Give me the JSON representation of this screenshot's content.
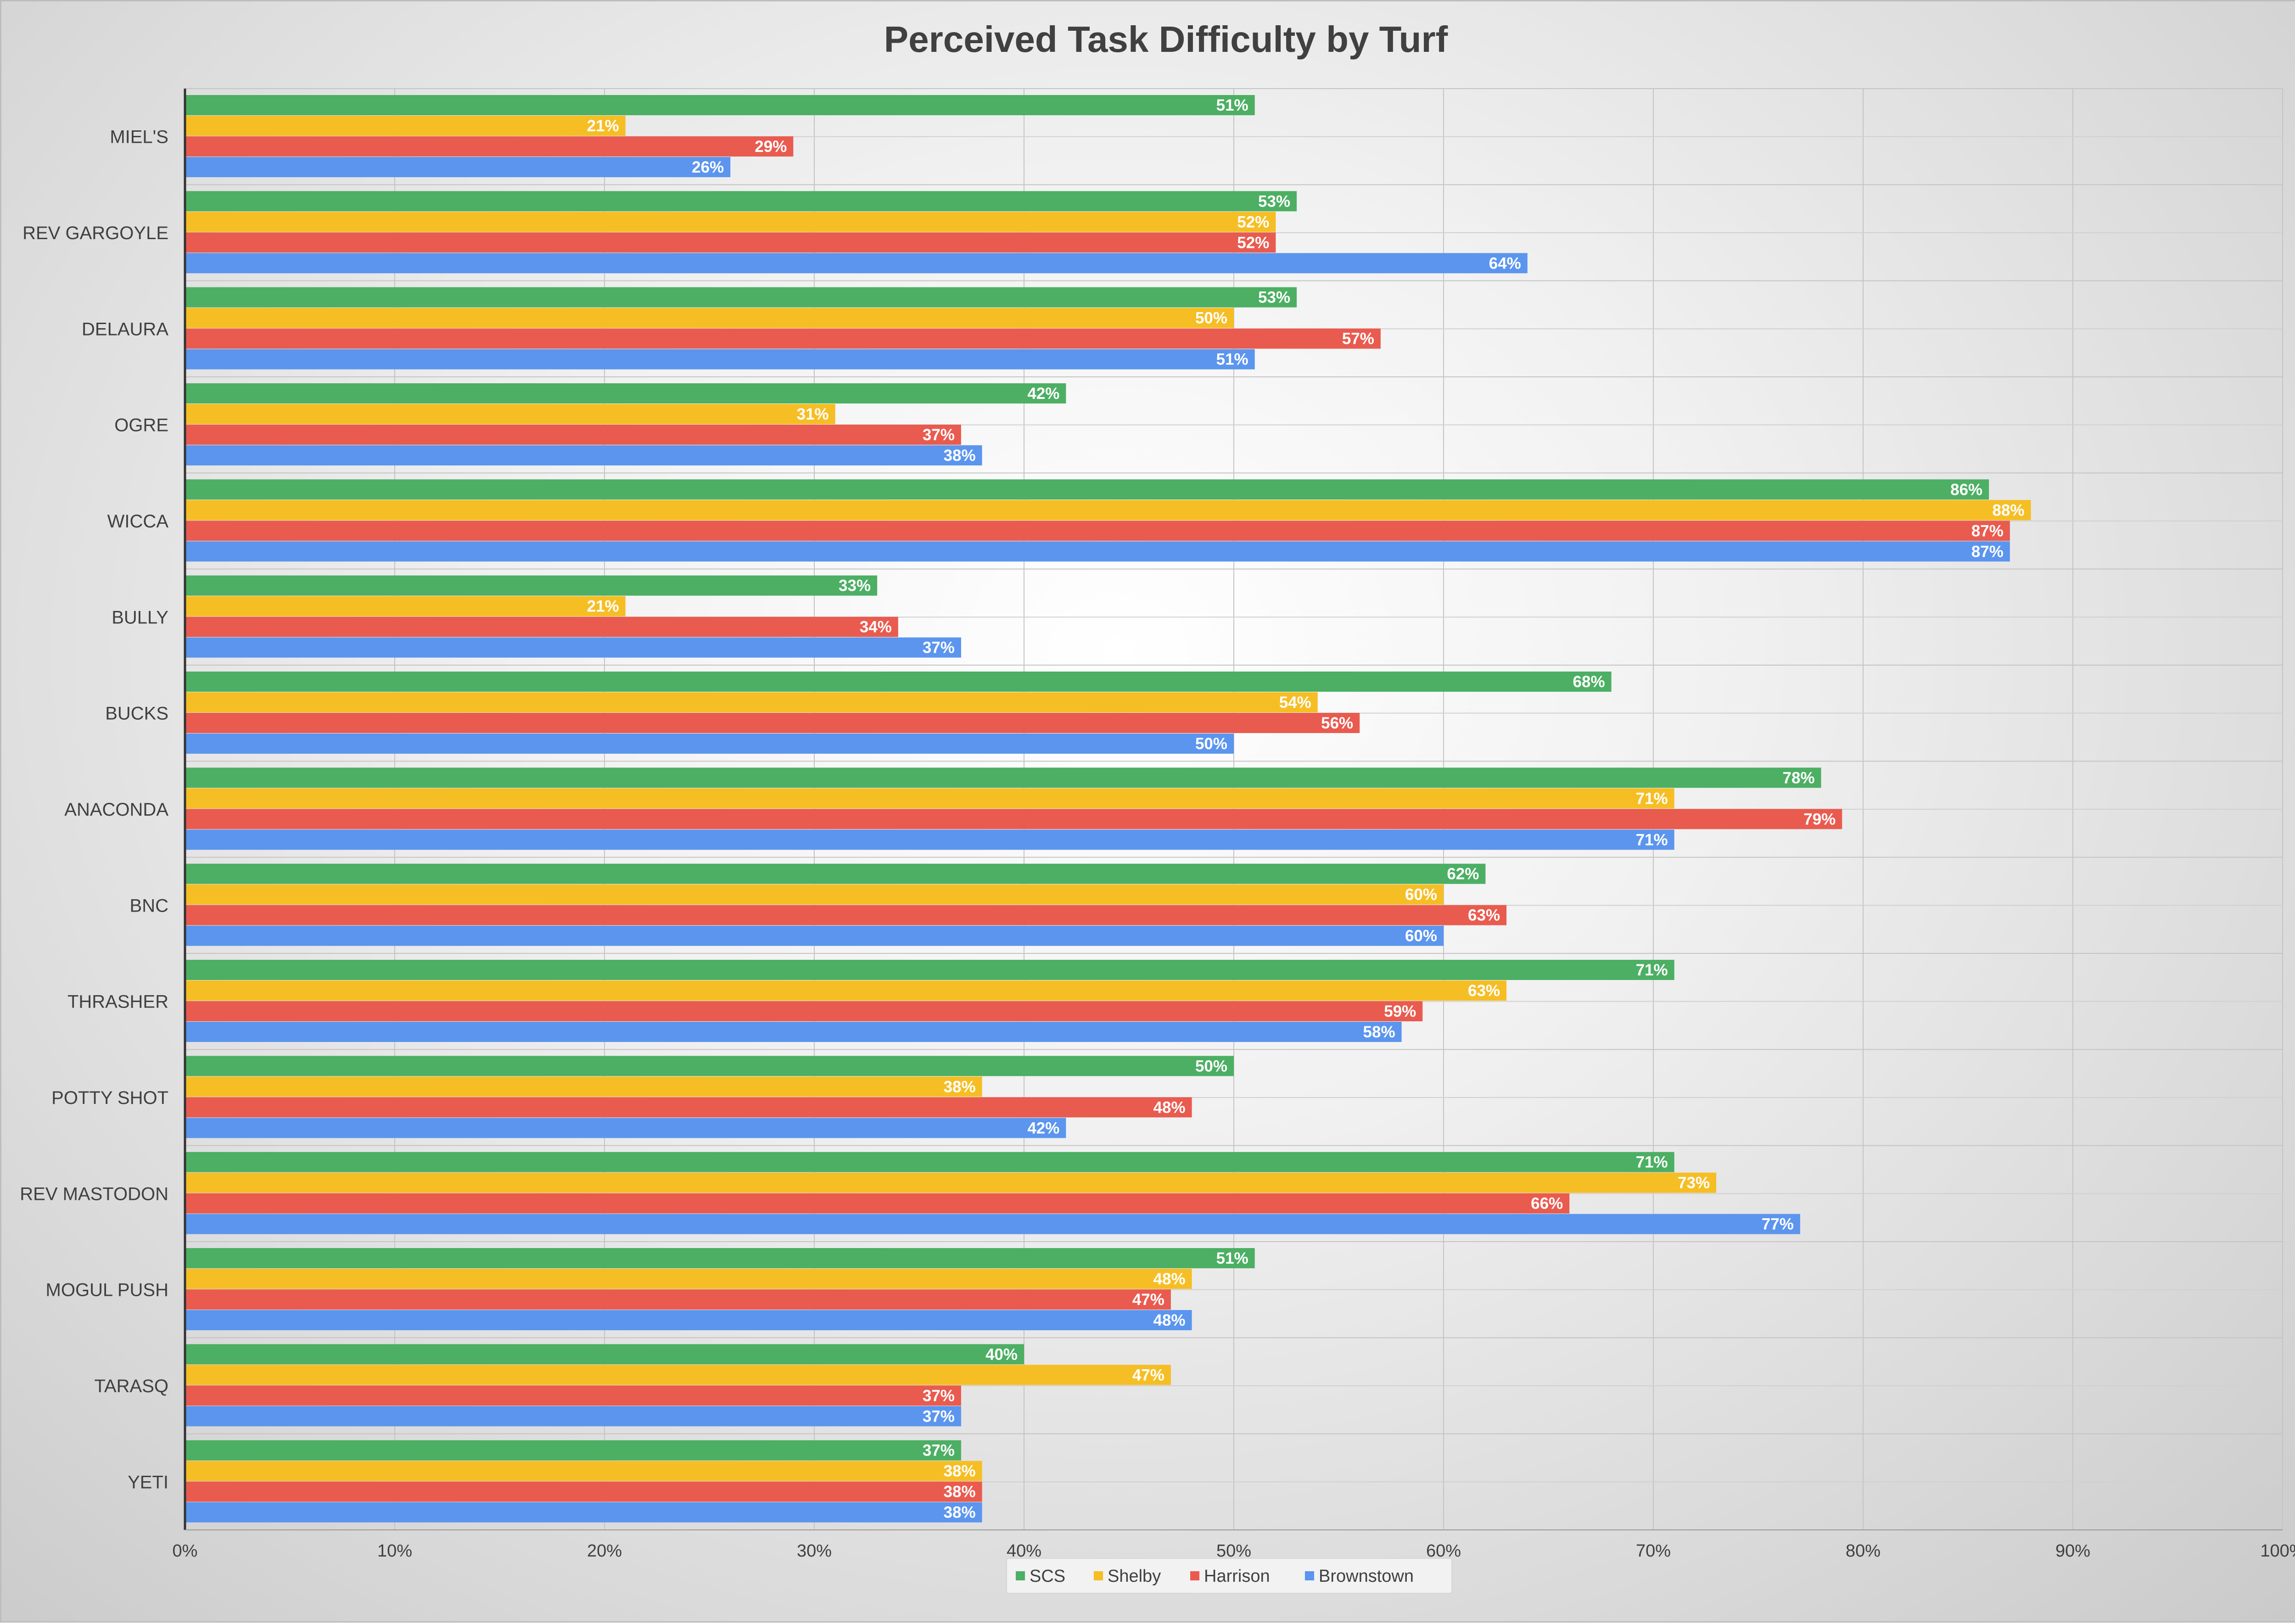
{
  "chart_data": {
    "type": "bar",
    "orientation": "horizontal",
    "title": "Perceived Task Difficulty by Turf",
    "xlabel": "",
    "ylabel": "",
    "xlim": [
      0,
      100
    ],
    "x_ticks": [
      "0%",
      "10%",
      "20%",
      "30%",
      "40%",
      "50%",
      "60%",
      "70%",
      "80%",
      "90%",
      "100%"
    ],
    "grid": true,
    "legend_position": "bottom",
    "categories": [
      "MIEL'S",
      "REV GARGOYLE",
      "DELAURA",
      "OGRE",
      "WICCA",
      "BULLY",
      "BUCKS",
      "ANACONDA",
      "BNC",
      "THRASHER",
      "POTTY SHOT",
      "REV MASTODON",
      "MOGUL PUSH",
      "TARASQ",
      "YETI"
    ],
    "series": [
      {
        "name": "SCS",
        "color": "#4caf63",
        "values": [
          51,
          53,
          53,
          42,
          86,
          33,
          68,
          78,
          62,
          71,
          50,
          71,
          51,
          40,
          37
        ]
      },
      {
        "name": "Shelby",
        "color": "#f6be25",
        "values": [
          21,
          52,
          50,
          31,
          88,
          21,
          54,
          71,
          60,
          63,
          38,
          73,
          48,
          47,
          38
        ]
      },
      {
        "name": "Harrison",
        "color": "#e95b4f",
        "values": [
          29,
          52,
          57,
          37,
          87,
          34,
          56,
          79,
          63,
          59,
          48,
          66,
          47,
          37,
          38
        ]
      },
      {
        "name": "Brownstown",
        "color": "#5b95ee",
        "values": [
          26,
          64,
          51,
          38,
          87,
          37,
          50,
          71,
          60,
          58,
          42,
          77,
          48,
          37,
          38
        ]
      }
    ],
    "data_labels": [
      [
        "51%",
        "53%",
        "53%",
        "42%",
        "86%",
        "33%",
        "68%",
        "78%",
        "62%",
        "71%",
        "50%",
        "71%",
        "51%",
        "40%",
        "37%"
      ],
      [
        "21%",
        "52%",
        "50%",
        "31%",
        "88%",
        "21%",
        "54%",
        "71%",
        "60%",
        "63%",
        "38%",
        "73%",
        "48%",
        "47%",
        "38%"
      ],
      [
        "29%",
        "52%",
        "57%",
        "37%",
        "87%",
        "34%",
        "56%",
        "79%",
        "63%",
        "59%",
        "48%",
        "66%",
        "47%",
        "37%",
        "38%"
      ],
      [
        "26%",
        "64%",
        "51%",
        "38%",
        "87%",
        "37%",
        "50%",
        "71%",
        "60%",
        "58%",
        "42%",
        "77%",
        "48%",
        "37%",
        "38%"
      ]
    ]
  }
}
